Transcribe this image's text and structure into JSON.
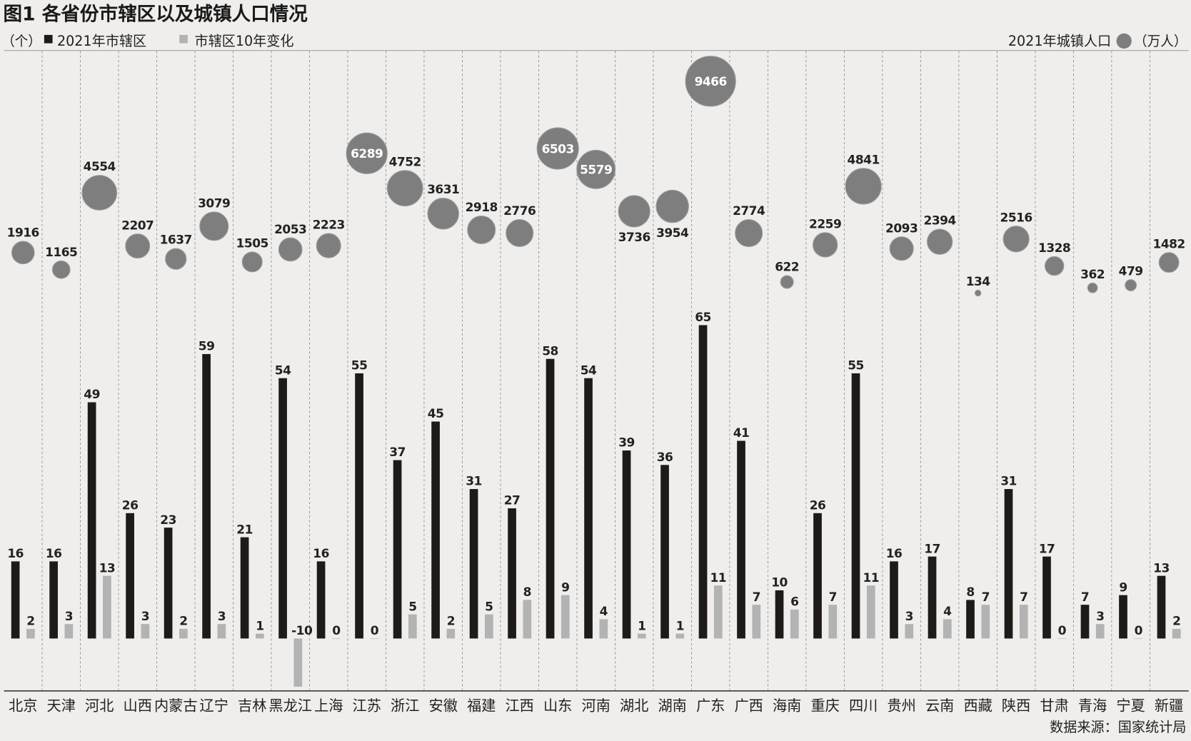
{
  "legend": {
    "unit_left": "（个）",
    "unit_right": "（万人）"
  },
  "source": "数据来源：国家统计局",
  "colors": {
    "background": "#efeeec",
    "bar_districts": "#1e1a17",
    "bar_change": "#b3b3b3",
    "bubble": "#7e7e7e",
    "bubble_edge": "#9c9c9c",
    "text": "#222222"
  },
  "chart_data": {
    "type": "bar",
    "title": "图1  各省份市辖区以及城镇人口情况",
    "categories": [
      "北京",
      "天津",
      "河北",
      "山西",
      "内蒙古",
      "辽宁",
      "吉林",
      "黑龙江",
      "上海",
      "江苏",
      "浙江",
      "安徽",
      "福建",
      "江西",
      "山东",
      "河南",
      "湖北",
      "湖南",
      "广东",
      "广西",
      "海南",
      "重庆",
      "四川",
      "贵州",
      "云南",
      "西藏",
      "陕西",
      "甘肃",
      "青海",
      "宁夏",
      "新疆"
    ],
    "series": [
      {
        "name": "2021年市辖区",
        "values": [
          16,
          16,
          49,
          26,
          23,
          59,
          21,
          54,
          16,
          55,
          37,
          45,
          31,
          27,
          58,
          54,
          39,
          36,
          65,
          41,
          10,
          26,
          55,
          16,
          17,
          8,
          31,
          17,
          7,
          9,
          13
        ]
      },
      {
        "name": "市辖区10年变化",
        "values": [
          2,
          3,
          13,
          3,
          2,
          3,
          1,
          -10,
          0,
          0,
          5,
          2,
          5,
          8,
          9,
          4,
          1,
          1,
          11,
          7,
          6,
          7,
          11,
          3,
          4,
          7,
          7,
          0,
          3,
          0,
          2
        ]
      },
      {
        "name": "2021年城镇人口",
        "values": [
          1916,
          1165,
          4554,
          2207,
          1637,
          3079,
          1505,
          2053,
          2223,
          6289,
          4752,
          3631,
          2918,
          2776,
          6503,
          5579,
          3736,
          3954,
          9466,
          2774,
          622,
          2259,
          4841,
          2093,
          2394,
          134,
          2516,
          1328,
          362,
          479,
          1482
        ]
      }
    ],
    "xlabel": "",
    "ylabel": "",
    "ylim": [
      -10,
      65
    ],
    "legend": "top"
  }
}
